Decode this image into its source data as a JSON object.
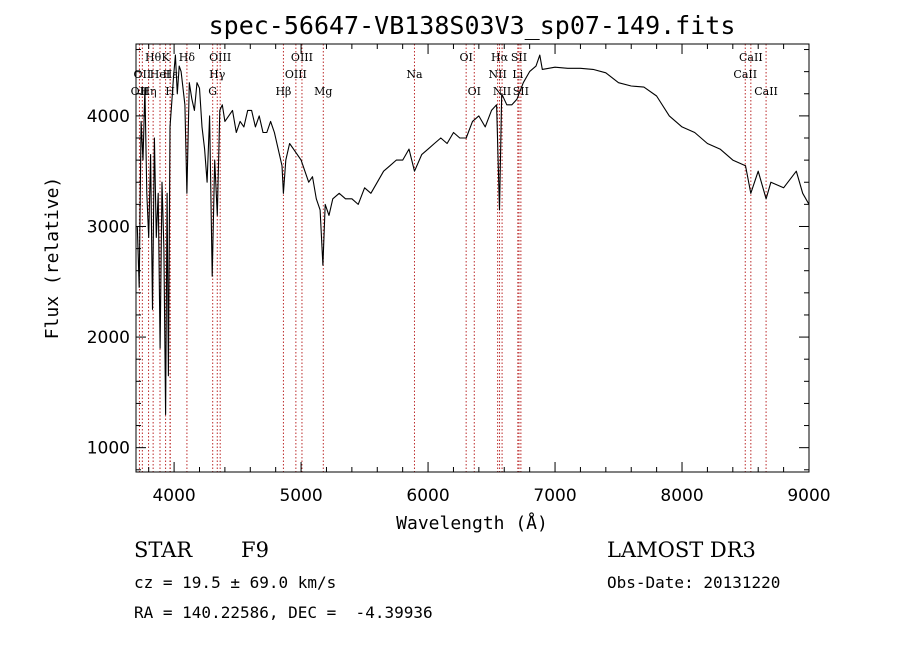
{
  "chart_data": {
    "type": "line",
    "title": "spec-56647-VB138S03V3_sp07-149.fits",
    "xlabel": "Wavelength (Å)",
    "ylabel": "Flux (relative)",
    "xlim": [
      3700,
      9000
    ],
    "ylim": [
      780,
      4650
    ],
    "xticks": [
      4000,
      5000,
      6000,
      7000,
      8000,
      9000
    ],
    "yticks": [
      1000,
      2000,
      3000,
      4000
    ],
    "xtick_labels": [
      "4000",
      "5000",
      "6000",
      "7000",
      "8000",
      "9000"
    ],
    "ytick_labels": [
      "1000",
      "2000",
      "3000",
      "4000"
    ],
    "series": [
      {
        "name": "flux",
        "x": [
          3710,
          3725,
          3740,
          3755,
          3770,
          3785,
          3800,
          3815,
          3830,
          3845,
          3860,
          3875,
          3890,
          3905,
          3920,
          3933,
          3945,
          3955,
          3968,
          3980,
          3995,
          4010,
          4025,
          4040,
          4055,
          4070,
          4085,
          4101,
          4120,
          4140,
          4160,
          4180,
          4200,
          4220,
          4240,
          4260,
          4280,
          4300,
          4320,
          4340,
          4360,
          4380,
          4400,
          4430,
          4460,
          4490,
          4520,
          4550,
          4580,
          4610,
          4640,
          4670,
          4700,
          4730,
          4760,
          4790,
          4820,
          4850,
          4861,
          4880,
          4910,
          4940,
          4970,
          5000,
          5030,
          5060,
          5090,
          5120,
          5150,
          5172,
          5190,
          5220,
          5250,
          5300,
          5350,
          5400,
          5450,
          5500,
          5550,
          5600,
          5650,
          5700,
          5750,
          5800,
          5850,
          5893,
          5950,
          6000,
          6050,
          6100,
          6150,
          6200,
          6250,
          6300,
          6350,
          6400,
          6450,
          6500,
          6540,
          6563,
          6580,
          6620,
          6660,
          6700,
          6750,
          6800,
          6850,
          6880,
          6900,
          6950,
          7000,
          7100,
          7200,
          7300,
          7400,
          7500,
          7600,
          7700,
          7800,
          7900,
          8000,
          8100,
          8200,
          8300,
          8400,
          8500,
          8542,
          8600,
          8662,
          8700,
          8800,
          8900,
          8950,
          9000
        ],
        "values": [
          3000,
          2450,
          3950,
          3600,
          4250,
          3300,
          2900,
          3650,
          2250,
          3800,
          2900,
          3300,
          1900,
          3400,
          2800,
          1300,
          3300,
          1650,
          3900,
          4100,
          4350,
          4550,
          4200,
          4450,
          4400,
          4250,
          4100,
          3300,
          4300,
          4150,
          4050,
          4300,
          4250,
          3900,
          3700,
          3400,
          4000,
          2550,
          3600,
          3100,
          4050,
          4100,
          3950,
          4000,
          4050,
          3850,
          3950,
          3900,
          4050,
          4050,
          3900,
          4000,
          3850,
          3850,
          3950,
          3850,
          3700,
          3550,
          3300,
          3600,
          3750,
          3700,
          3650,
          3600,
          3500,
          3400,
          3450,
          3250,
          3150,
          2650,
          3200,
          3100,
          3250,
          3300,
          3250,
          3250,
          3200,
          3350,
          3300,
          3400,
          3500,
          3550,
          3600,
          3600,
          3700,
          3500,
          3650,
          3700,
          3750,
          3800,
          3750,
          3850,
          3800,
          3800,
          3950,
          4000,
          3900,
          4050,
          4100,
          3150,
          4200,
          4100,
          4100,
          4150,
          4300,
          4400,
          4450,
          4550,
          4420,
          4430,
          4440,
          4430,
          4430,
          4420,
          4390,
          4300,
          4270,
          4260,
          4180,
          4000,
          3900,
          3850,
          3750,
          3700,
          3600,
          3550,
          3300,
          3500,
          3250,
          3400,
          3350,
          3500,
          3300,
          3200
        ]
      }
    ],
    "line_color": "#000000",
    "marker_color": "#bb2a2a",
    "line_markers": [
      {
        "wl": 3727,
        "label": "OII",
        "row": 3
      },
      {
        "wl": 3750,
        "label": "OII",
        "row": 2
      },
      {
        "wl": 3799,
        "label": "Hη",
        "row": 3
      },
      {
        "wl": 3835,
        "label": "Hθ",
        "row": 1
      },
      {
        "wl": 3889,
        "label": "HeI",
        "row": 2
      },
      {
        "wl": 3933,
        "label": "K",
        "row": 1
      },
      {
        "wl": 3968,
        "label": "H",
        "row": 3
      },
      {
        "wl": 3970,
        "label": "Hε",
        "row": 2
      },
      {
        "wl": 4101,
        "label": "Hδ",
        "row": 1
      },
      {
        "wl": 4304,
        "label": "G",
        "row": 3
      },
      {
        "wl": 4340,
        "label": "Hγ",
        "row": 2
      },
      {
        "wl": 4363,
        "label": "OIII",
        "row": 1
      },
      {
        "wl": 4861,
        "label": "Hβ",
        "row": 3
      },
      {
        "wl": 4959,
        "label": "OIII",
        "row": 2
      },
      {
        "wl": 5007,
        "label": "OIII",
        "row": 1
      },
      {
        "wl": 5175,
        "label": "Mg",
        "row": 3
      },
      {
        "wl": 5893,
        "label": "Na",
        "row": 2
      },
      {
        "wl": 6300,
        "label": "OI",
        "row": 1
      },
      {
        "wl": 6364,
        "label": "OI",
        "row": 3
      },
      {
        "wl": 6548,
        "label": "NII",
        "row": 2
      },
      {
        "wl": 6563,
        "label": "Hα",
        "row": 1
      },
      {
        "wl": 6583,
        "label": "NII",
        "row": 3
      },
      {
        "wl": 6707,
        "label": "Li",
        "row": 2
      },
      {
        "wl": 6716,
        "label": "SII",
        "row": 1
      },
      {
        "wl": 6731,
        "label": "SII",
        "row": 3
      },
      {
        "wl": 8498,
        "label": "CaII",
        "row": 2
      },
      {
        "wl": 8542,
        "label": "CaII",
        "row": 1
      },
      {
        "wl": 8662,
        "label": "CaII",
        "row": 3
      }
    ]
  },
  "info": {
    "class_text": "STAR",
    "subclass_text": "F9",
    "survey_text": "LAMOST DR3",
    "cz_text": "cz = 19.5 ± 69.0 km/s",
    "obs_date_text": "Obs-Date: 20131220",
    "coords_text": "RA = 140.22586, DEC =  -4.39936"
  }
}
